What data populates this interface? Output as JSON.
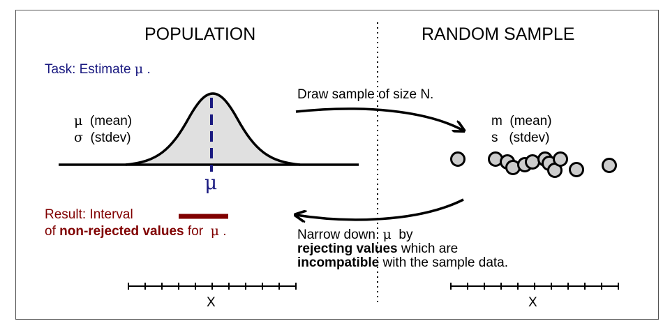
{
  "population": {
    "heading": "POPULATION",
    "task_prefix": "Task: Estimate",
    "task_symbol": "μ",
    "task_suffix": ".",
    "param_mu_symbol": "μ",
    "param_mu_label": "(mean)",
    "param_sigma_symbol": "σ",
    "param_sigma_label": "(stdev)",
    "mu_axis_label": "μ",
    "result_line1": "Result: Interval",
    "result_line2_prefix": "of",
    "result_line2_bold": "non-rejected values",
    "result_line2_suffix": "for",
    "result_symbol": "μ",
    "result_end": ".",
    "axis_label": "X"
  },
  "sample": {
    "heading": "RANDOM SAMPLE",
    "draw_text": "Draw sample of size N.",
    "stat_m_symbol": "m",
    "stat_m_label": "(mean)",
    "stat_s_symbol": "s",
    "stat_s_label": "(stdev)",
    "narrow_prefix": "Narrow down",
    "narrow_symbol": "μ",
    "narrow_suffix": "by",
    "reject_bold": "rejecting values",
    "reject_rest": "which are",
    "incompat_bold": "incompatible",
    "incompat_rest": "with the sample data.",
    "axis_label": "X"
  },
  "colors": {
    "navy": "#1a1a80",
    "maroon": "#800000",
    "curve_fill": "#e0e0e0",
    "point_fill": "#cccccc"
  }
}
